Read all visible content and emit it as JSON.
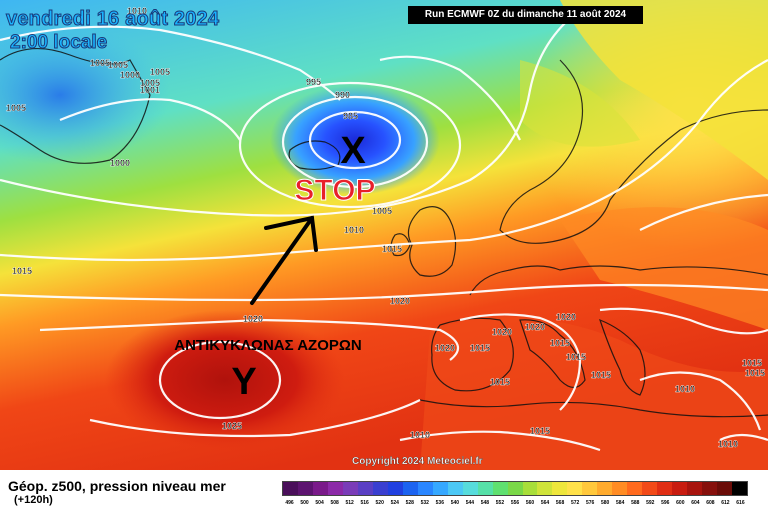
{
  "header": {
    "date": "vendredi 16 août 2024",
    "time": "2:00 locale",
    "run": "Run ECMWF 0Z du dimanche 11 août 2024"
  },
  "annotations": {
    "low_symbol": "X",
    "stop_text": "STOP",
    "anticyclone_text": "ΑΝΤΙΚΥΚΛΩΝΑΣ ΑΖΟΡΩΝ",
    "high_symbol": "Y"
  },
  "isobar_labels": [
    "1010",
    "1005",
    "1000",
    "1005",
    "1005",
    "1001",
    "995",
    "990",
    "985",
    "1005",
    "1005",
    "1000",
    "1005",
    "1010",
    "1015",
    "1015",
    "1020",
    "1020",
    "1020",
    "1020",
    "1020",
    "1020",
    "1015",
    "1015",
    "1015",
    "1025",
    "1015",
    "1010",
    "1015",
    "1015",
    "1010",
    "1015",
    "1010",
    "1015"
  ],
  "copyright": "Copyright 2024 Meteociel.fr",
  "legend": {
    "title": "Géop. z500, pression niveau mer",
    "subtitle": "(+120h)",
    "values": [
      "496",
      "500",
      "504",
      "508",
      "512",
      "516",
      "520",
      "524",
      "528",
      "532",
      "536",
      "540",
      "544",
      "548",
      "552",
      "556",
      "560",
      "564",
      "568",
      "572",
      "576",
      "580",
      "584",
      "588",
      "592",
      "596",
      "600",
      "604",
      "608",
      "612",
      "616"
    ],
    "colors": [
      "#4a0f5a",
      "#5d1470",
      "#7a1a8a",
      "#8c2aa8",
      "#7a3cb8",
      "#5a3fc4",
      "#3a3fd0",
      "#2140e0",
      "#1c63f0",
      "#2a86ff",
      "#36a8ff",
      "#4cc8f5",
      "#57dcdc",
      "#56e0a8",
      "#5fe070",
      "#7ad848",
      "#a8de3a",
      "#cfe33a",
      "#eee63c",
      "#ffe14a",
      "#ffc83c",
      "#ffab2e",
      "#ff8c24",
      "#ff6a1e",
      "#f24a18",
      "#e02e14",
      "#c81c10",
      "#a8140e",
      "#86100c",
      "#6a0c08",
      "#000000"
    ]
  }
}
